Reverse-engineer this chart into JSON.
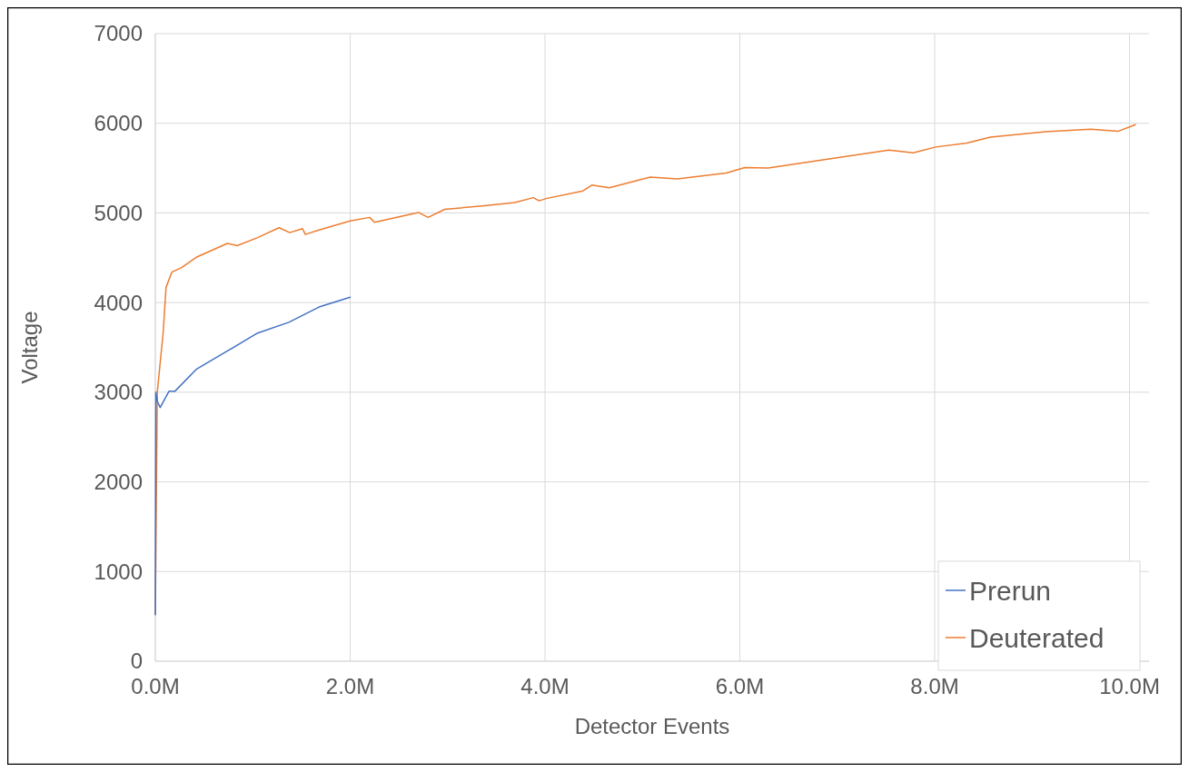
{
  "chart_data": {
    "type": "line",
    "xlabel": "Detector Events",
    "ylabel": "Voltage",
    "xlim": [
      0,
      10200000
    ],
    "xticks": [
      {
        "value": 0,
        "label": "0.0M"
      },
      {
        "value": 2000000,
        "label": "2.0M"
      },
      {
        "value": 4000000,
        "label": "4.0M"
      },
      {
        "value": 6000000,
        "label": "6.0M"
      },
      {
        "value": 8000000,
        "label": "8.0M"
      },
      {
        "value": 10000000,
        "label": "10.0M"
      }
    ],
    "ylim": [
      0,
      7000
    ],
    "yticks": [
      0,
      1000,
      2000,
      3000,
      4000,
      5000,
      6000,
      7000
    ],
    "grid": true,
    "legend": "bottom right",
    "line_style": "solid",
    "marker": "none",
    "series": [
      {
        "name": "Prerun",
        "color": "#4472c4",
        "x": [
          0,
          5000,
          20000,
          50000,
          140000,
          200000,
          420000,
          740000,
          1050000,
          1370000,
          1680000,
          2000000
        ],
        "values": [
          520,
          3000,
          2900,
          2830,
          3010,
          3010,
          3255,
          3460,
          3660,
          3780,
          3950,
          4060
        ]
      },
      {
        "name": "Deuterated",
        "color": "#ed7d31",
        "x": [
          0,
          20000,
          80000,
          110000,
          170000,
          270000,
          420000,
          740000,
          840000,
          1050000,
          1270000,
          1380000,
          1510000,
          1540000,
          1680000,
          2000000,
          2200000,
          2250000,
          2700000,
          2800000,
          2970000,
          3380000,
          3690000,
          3880000,
          3940000,
          4010000,
          4390000,
          4480000,
          4660000,
          5080000,
          5360000,
          5860000,
          6050000,
          6290000,
          6900000,
          7530000,
          7780000,
          8010000,
          8330000,
          8570000,
          9140000,
          9600000,
          9880000,
          10060000
        ],
        "values": [
          520,
          3000,
          3660,
          4170,
          4340,
          4390,
          4505,
          4660,
          4635,
          4725,
          4835,
          4780,
          4825,
          4760,
          4810,
          4910,
          4950,
          4895,
          5005,
          4950,
          5040,
          5080,
          5115,
          5170,
          5135,
          5160,
          5245,
          5310,
          5280,
          5400,
          5380,
          5445,
          5505,
          5500,
          5600,
          5700,
          5670,
          5735,
          5780,
          5845,
          5905,
          5935,
          5910,
          5985
        ]
      }
    ]
  }
}
